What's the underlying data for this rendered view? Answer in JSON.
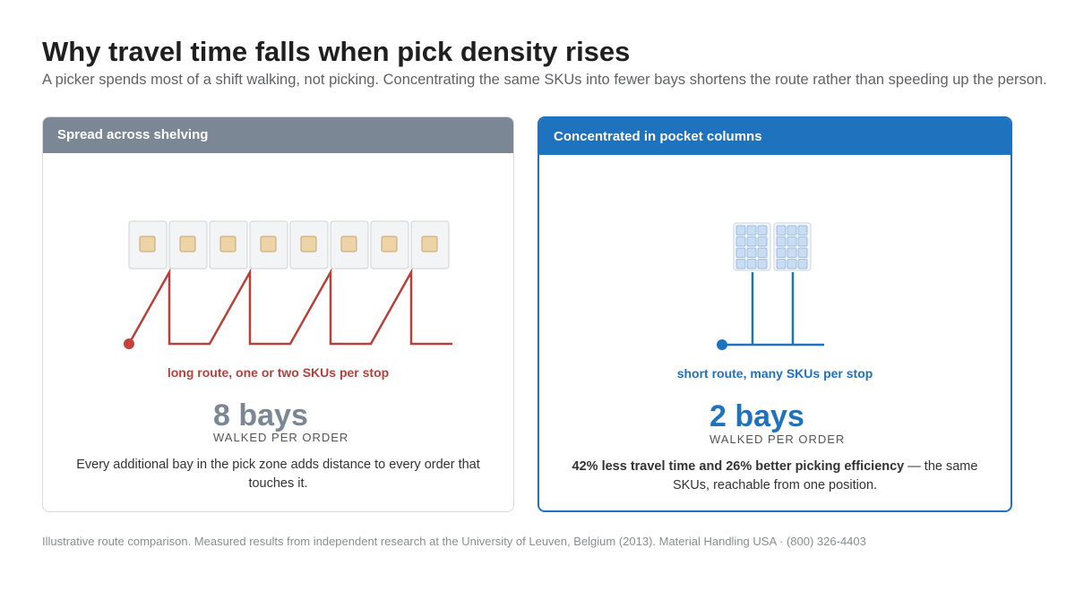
{
  "header": {
    "title": "Why travel time falls when pick density rises",
    "subtitle": "A picker spends most of a shift walking, not picking. Concentrating the same SKUs into fewer bays shortens the route rather than speeding up the person."
  },
  "panels": {
    "spread": {
      "title": "Spread across shelving",
      "route_caption": "long route, one or two SKUs per stop",
      "metric_value": "8 bays",
      "metric_label": "WALKED PER ORDER",
      "description": "Every additional bay in the pick zone adds distance to every order that touches it.",
      "bay_count": 8,
      "color": "#b5413b",
      "header_color": "#7b8794"
    },
    "concentrated": {
      "title": "Concentrated in pocket columns",
      "route_caption": "short route, many SKUs per stop",
      "metric_value": "2 bays",
      "metric_label": "WALKED PER ORDER",
      "description_bold": "42% less travel time and 26% better picking efficiency",
      "description_rest": " — the same SKUs, reachable from one position.",
      "bay_count": 2,
      "color": "#1f72bd",
      "header_color": "#1f72bd"
    }
  },
  "footnote": "Illustrative route comparison. Measured results from independent research at the University of Leuven, Belgium (2013). Material Handling USA · (800) 326-4403"
}
